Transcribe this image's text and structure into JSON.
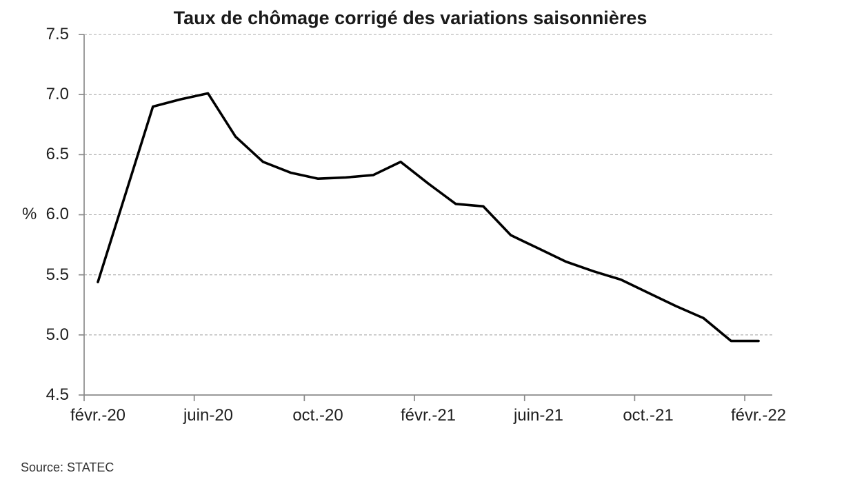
{
  "chart_data": {
    "type": "line",
    "title": "Taux de chômage corrigé des variations saisonnières",
    "ylabel": "%",
    "source": "Source: STATEC",
    "categories": [
      "févr.-20",
      "mars-20",
      "avr.-20",
      "mai-20",
      "juin-20",
      "juil.-20",
      "août-20",
      "sept.-20",
      "oct.-20",
      "nov.-20",
      "déc.-20",
      "janv.-21",
      "févr.-21",
      "mars-21",
      "avr.-21",
      "mai-21",
      "juin-21",
      "juil.-21",
      "août-21",
      "sept.-21",
      "oct.-21",
      "nov.-21",
      "déc.-21",
      "janv.-22",
      "févr.-22"
    ],
    "values": [
      5.44,
      6.17,
      6.9,
      6.96,
      7.01,
      6.65,
      6.44,
      6.35,
      6.3,
      6.31,
      6.33,
      6.44,
      6.26,
      6.09,
      6.07,
      5.83,
      5.72,
      5.61,
      5.53,
      5.46,
      5.35,
      5.24,
      5.14,
      4.95,
      4.95
    ],
    "ylim": [
      4.5,
      7.5
    ],
    "y_ticks": [
      7.5,
      7.0,
      6.5,
      6.0,
      5.5,
      5.0,
      4.5
    ],
    "y_tick_labels": [
      "7.5",
      "7.0",
      "6.5",
      "6.0",
      "5.5",
      "5.0",
      "4.5"
    ],
    "x_tick_labels": [
      "févr.-20",
      "juin-20",
      "oct.-20",
      "févr.-21",
      "juin-21",
      "oct.-21",
      "févr.-22"
    ],
    "x_label_interval_months": 4,
    "grid": "horizontal-dashed",
    "legend": "none",
    "colors": {
      "series_line": "#000000",
      "axis": "#8a8a8a",
      "gridline": "#a8a8a8",
      "text": "#1f1f1f",
      "source_text": "#333333"
    }
  }
}
